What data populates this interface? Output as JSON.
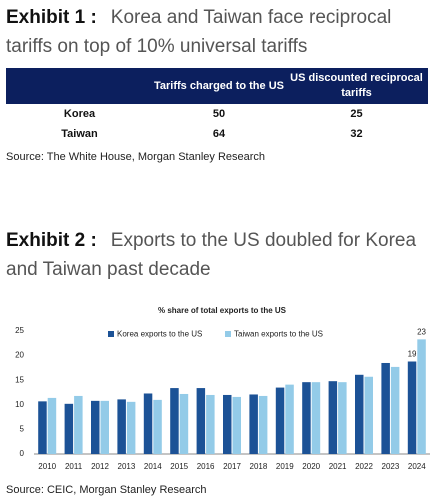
{
  "exhibit1": {
    "label": "Exhibit 1 :",
    "title": "Korea and Taiwan face reciprocal tariffs on top of 10% universal tariffs",
    "table": {
      "headers": [
        "Tariffs charged to the US",
        "US discounted reciprocal tariffs"
      ],
      "rows": [
        [
          "Korea",
          "50",
          "25"
        ],
        [
          "Taiwan",
          "64",
          "32"
        ]
      ]
    },
    "source": "Source: The White House, Morgan Stanley Research"
  },
  "exhibit2": {
    "label": "Exhibit 2 :",
    "title": "Exports to the US doubled for Korea and Taiwan past decade",
    "source": "Source: CEIC, Morgan Stanley Research"
  },
  "chart_data": {
    "type": "bar",
    "title": "% share of total exports to the US",
    "categories": [
      "2010",
      "2011",
      "2012",
      "2013",
      "2014",
      "2015",
      "2016",
      "2017",
      "2018",
      "2019",
      "2020",
      "2021",
      "2022",
      "2023",
      "2024"
    ],
    "series": [
      {
        "name": "Korea exports to the US",
        "color": "#1c5296",
        "values": [
          10.7,
          10.2,
          10.8,
          11.1,
          12.3,
          13.4,
          13.4,
          12.0,
          12.1,
          13.5,
          14.6,
          14.8,
          16.1,
          18.5,
          18.8
        ],
        "value_labels": [
          null,
          null,
          null,
          null,
          null,
          null,
          null,
          null,
          null,
          null,
          null,
          null,
          null,
          null,
          "19"
        ]
      },
      {
        "name": "Taiwan exports to the US",
        "color": "#93cbe8",
        "values": [
          11.4,
          11.8,
          10.8,
          10.6,
          11.0,
          12.2,
          12.0,
          11.6,
          11.8,
          14.1,
          14.6,
          14.6,
          15.7,
          17.7,
          23.3
        ],
        "value_labels": [
          null,
          null,
          null,
          null,
          null,
          null,
          null,
          null,
          null,
          null,
          null,
          null,
          null,
          null,
          "23"
        ]
      }
    ],
    "ylim": [
      0,
      25
    ],
    "yticks": [
      0,
      5,
      10,
      15,
      20,
      25
    ],
    "grid": false,
    "legend": "top"
  }
}
